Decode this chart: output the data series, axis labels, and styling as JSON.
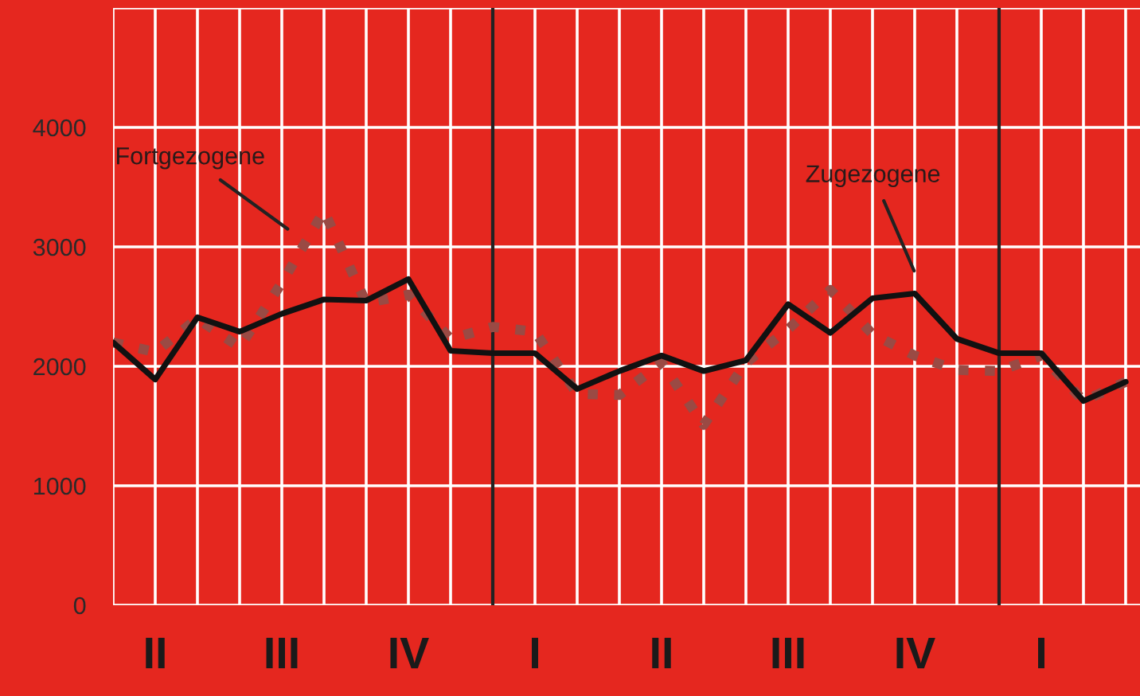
{
  "chart_data": {
    "type": "line",
    "categories": [
      null,
      "II",
      null,
      null,
      "III",
      null,
      null,
      "IV",
      null,
      null,
      "I",
      null,
      null,
      "II",
      null,
      null,
      "III",
      null,
      null,
      "IV",
      null,
      null,
      "I",
      null,
      null
    ],
    "series": [
      {
        "color": "#9a4a44",
        "line_style": "dotted",
        "values": [
          2200,
          2120,
          2400,
          2160,
          2700,
          3300,
          2530,
          2600,
          2230,
          2330,
          2290,
          1770,
          1760,
          2030,
          1510,
          2030,
          2310,
          2640,
          2270,
          2090,
          1970,
          1960,
          2090,
          1710,
          1870
        ]
      },
      {
        "color": "#111111",
        "line_style": "solid",
        "values": [
          2200,
          1890,
          2410,
          2290,
          2440,
          2560,
          2550,
          2730,
          2130,
          2110,
          2110,
          1810,
          1960,
          2090,
          1960,
          2050,
          2520,
          2280,
          2570,
          2610,
          2230,
          2110,
          2110,
          1710,
          1870
        ]
      }
    ],
    "ylim": [
      0,
      5000
    ],
    "yticks": [
      0,
      1000,
      2000,
      3000,
      4000,
      {
        "value": 5000,
        "label": null
      }
    ],
    "grid": true,
    "annotations": [
      "Fortgezogene",
      "Zugezogene"
    ]
  }
}
